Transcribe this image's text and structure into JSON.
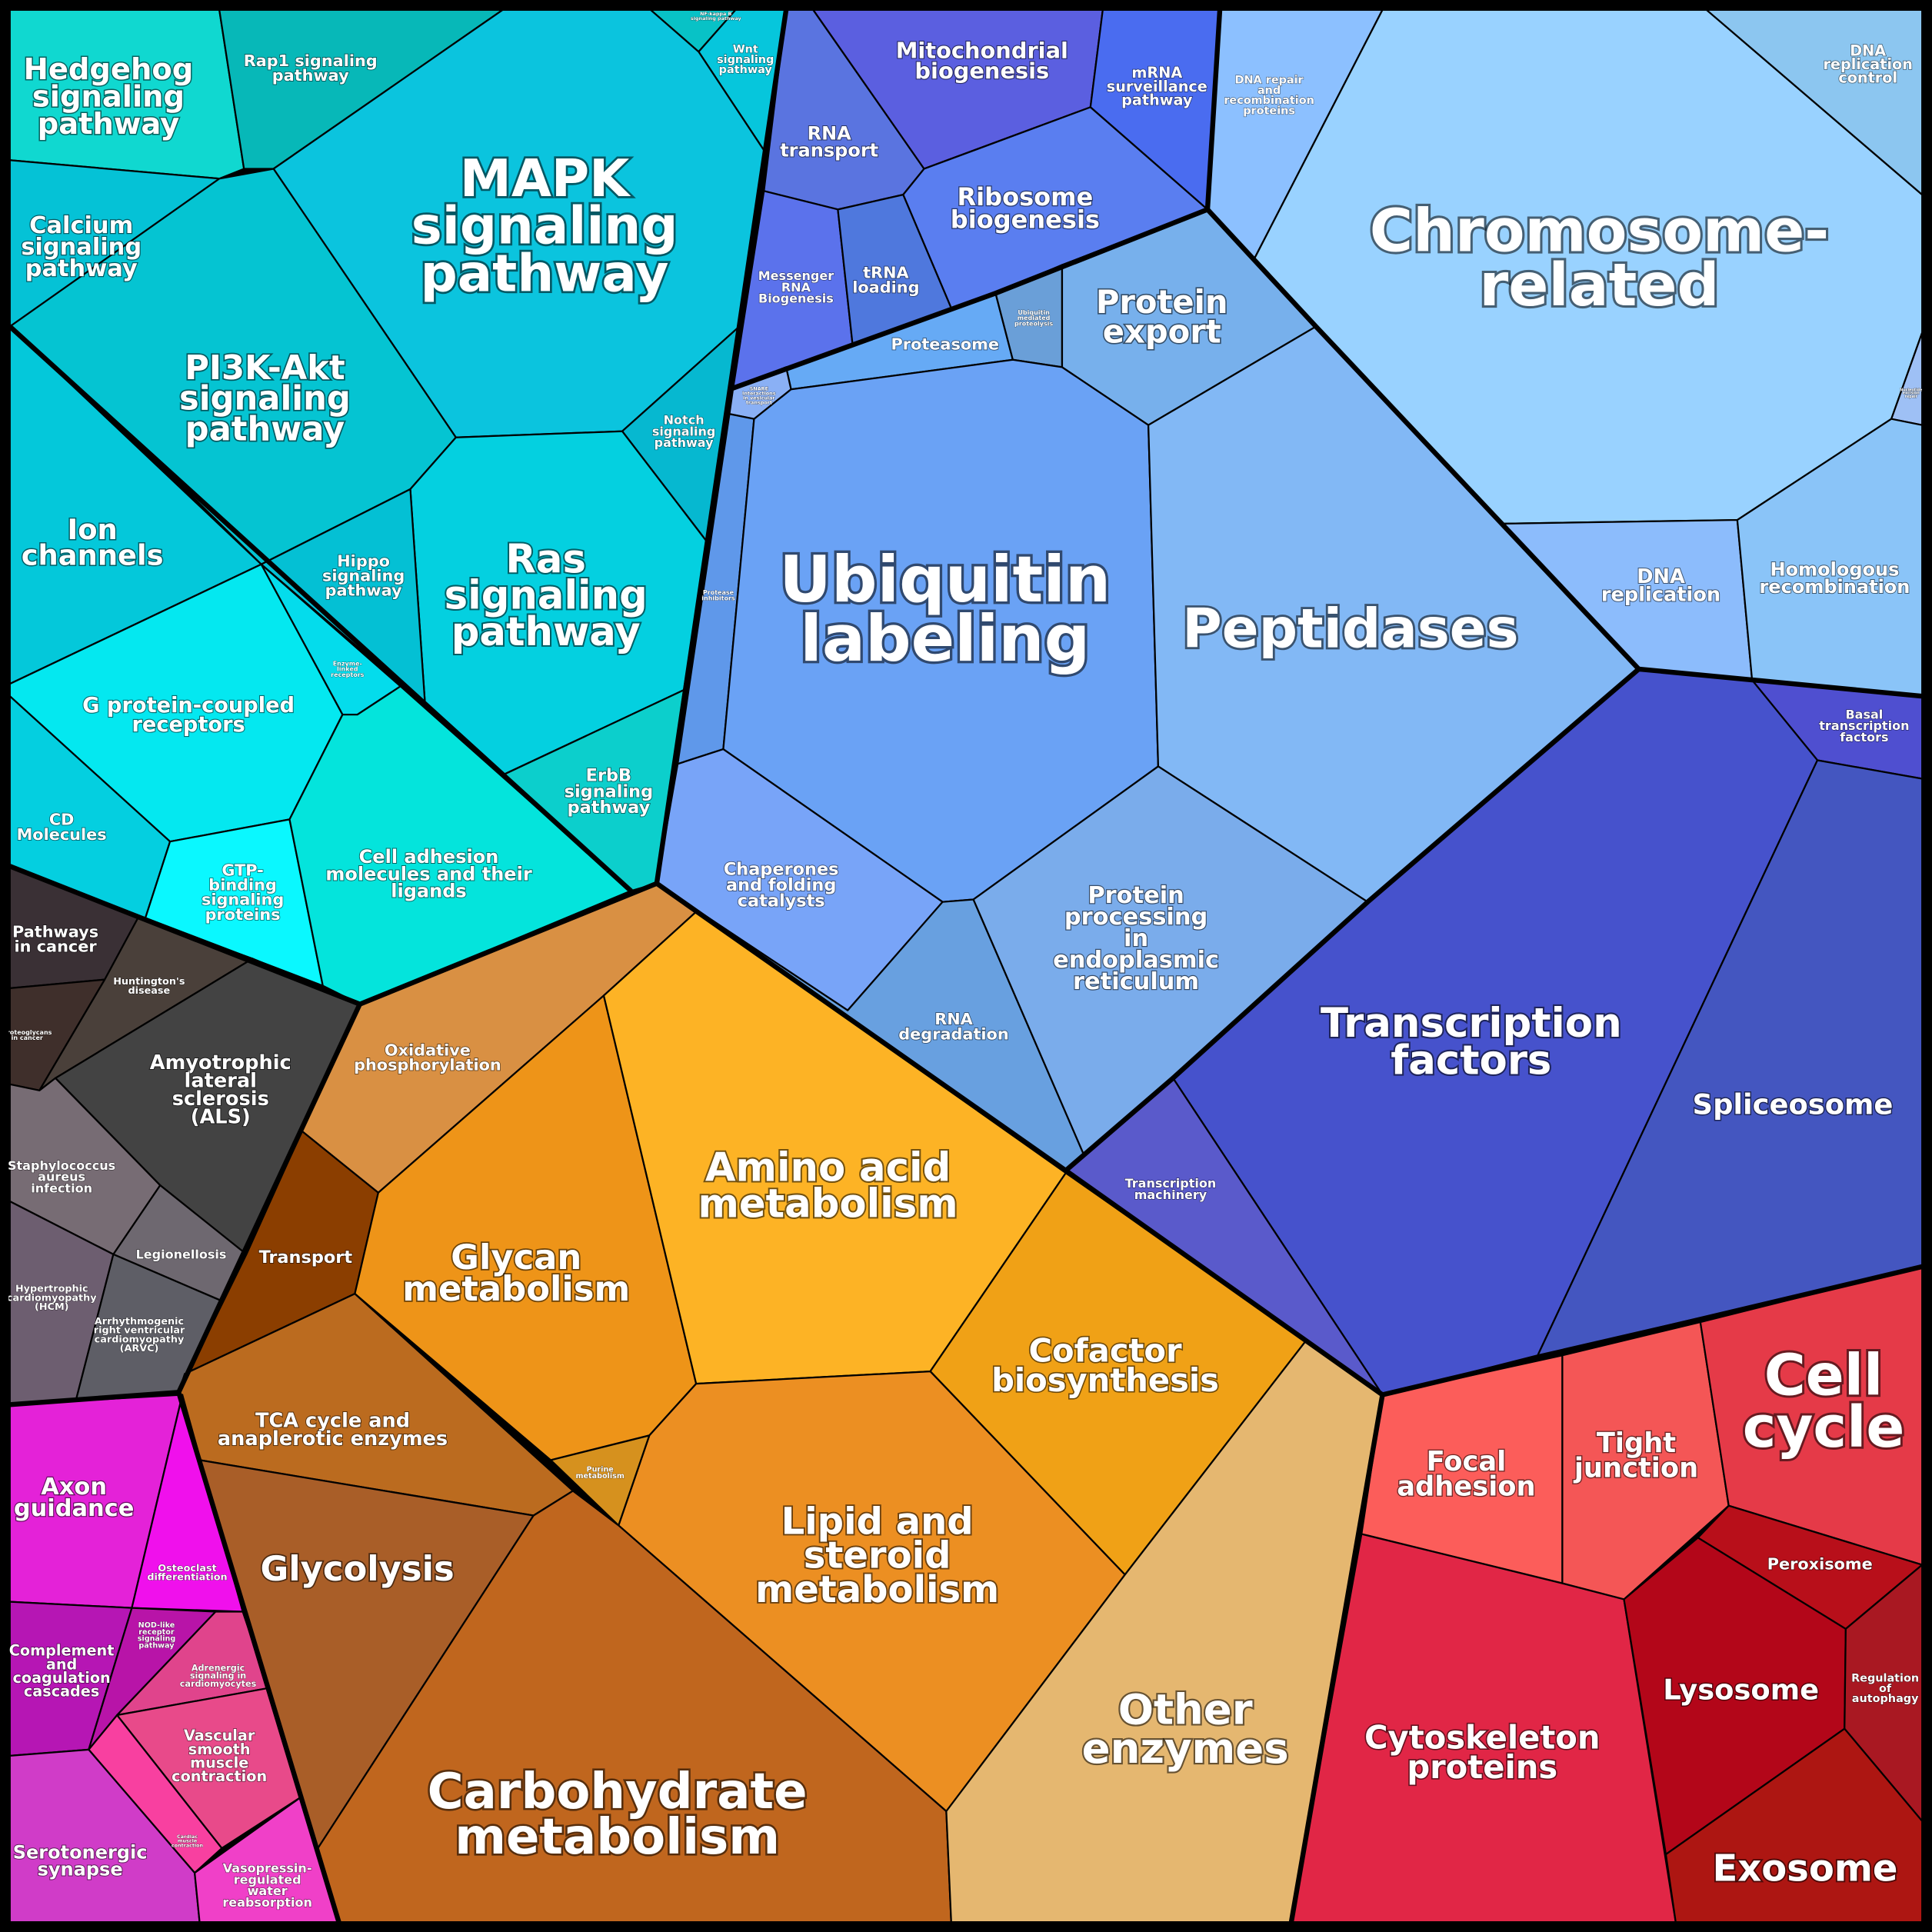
{
  "cells": [
    {
      "id": "hedgehog",
      "lines": [
        "Hedgehog",
        "signaling",
        "pathway"
      ],
      "color": "#10d8d0"
    },
    {
      "id": "rap1",
      "lines": [
        "Rap1 signaling",
        "pathway"
      ],
      "color": "#07b8b8"
    },
    {
      "id": "nfkb",
      "lines": [
        "NF-kappa B",
        "signaling pathway"
      ],
      "color": "#08c2c6"
    },
    {
      "id": "wnt",
      "lines": [
        "Wnt",
        "signaling",
        "pathway"
      ],
      "color": "#06c6dc"
    },
    {
      "id": "mapk",
      "lines": [
        "MAPK",
        "signaling",
        "pathway"
      ],
      "color": "#0bc4de"
    },
    {
      "id": "calcium",
      "lines": [
        "Calcium",
        "signaling",
        "pathway"
      ],
      "color": "#05c2d6"
    },
    {
      "id": "pi3k",
      "lines": [
        "PI3K-Akt",
        "signaling",
        "pathway"
      ],
      "color": "#05c4d2"
    },
    {
      "id": "notch",
      "lines": [
        "Notch",
        "signaling",
        "pathway"
      ],
      "color": "#06b8d0"
    },
    {
      "id": "ras",
      "lines": [
        "Ras",
        "signaling",
        "pathway"
      ],
      "color": "#04d0e0"
    },
    {
      "id": "hippo",
      "lines": [
        "Hippo",
        "signaling",
        "pathway"
      ],
      "color": "#04c0d4"
    },
    {
      "id": "erbb",
      "lines": [
        "ErbB",
        "signaling",
        "pathway"
      ],
      "color": "#0ccfcc"
    },
    {
      "id": "ion",
      "lines": [
        "Ion",
        "channels"
      ],
      "color": "#04c8da"
    },
    {
      "id": "enzyme",
      "lines": [
        "Enzyme-",
        "linked",
        "receptors"
      ],
      "color": "#04dcec"
    },
    {
      "id": "gpcr",
      "lines": [
        "G protein-coupled",
        "receptors"
      ],
      "color": "#04e8f0"
    },
    {
      "id": "cd",
      "lines": [
        "CD",
        "Molecules"
      ],
      "color": "#04cfe0"
    },
    {
      "id": "gtp",
      "lines": [
        "GTP-",
        "binding",
        "signaling",
        "proteins"
      ],
      "color": "#0af8ff"
    },
    {
      "id": "celladh",
      "lines": [
        "Cell adhesion",
        "molecules and their",
        "ligands"
      ],
      "color": "#04e4dc"
    },
    {
      "id": "cancer",
      "lines": [
        "Pathways",
        "in cancer"
      ],
      "color": "#3a3035"
    },
    {
      "id": "proteoglycans",
      "lines": [
        "Proteoglycans",
        "in cancer"
      ],
      "color": "#3f2f2b"
    },
    {
      "id": "huntington",
      "lines": [
        "Huntington's",
        "disease"
      ],
      "color": "#4a403a"
    },
    {
      "id": "als",
      "lines": [
        "Amyotrophic",
        "lateral",
        "sclerosis",
        "(ALS)"
      ],
      "color": "#434343"
    },
    {
      "id": "staph",
      "lines": [
        "Staphylococcus",
        "aureus",
        "infection"
      ],
      "color": "#776c74"
    },
    {
      "id": "legion",
      "lines": [
        "Legionellosis"
      ],
      "color": "#6e6870"
    },
    {
      "id": "hcm",
      "lines": [
        "Hypertrophic",
        "cardiomyopathy",
        "(HCM)"
      ],
      "color": "#6d5e70"
    },
    {
      "id": "arvc",
      "lines": [
        "Arrhythmogenic",
        "right ventricular",
        "cardiomyopathy",
        "(ARVC)"
      ],
      "color": "#5e5e66"
    },
    {
      "id": "oxphos",
      "lines": [
        "Oxidative",
        "phosphorylation"
      ],
      "color": "#d99043"
    },
    {
      "id": "transport",
      "lines": [
        "Transport"
      ],
      "color": "#8b3e00"
    },
    {
      "id": "glycan",
      "lines": [
        "Glycan",
        "metabolism"
      ],
      "color": "#ee9418"
    },
    {
      "id": "amino",
      "lines": [
        "Amino acid",
        "metabolism"
      ],
      "color": "#fdb325"
    },
    {
      "id": "cofactor",
      "lines": [
        "Cofactor",
        "biosynthesis"
      ],
      "color": "#f0a116"
    },
    {
      "id": "lipid",
      "lines": [
        "Lipid and",
        "steroid",
        "metabolism"
      ],
      "color": "#ec8f22"
    },
    {
      "id": "purine",
      "lines": [
        "Purine",
        "metabolism"
      ],
      "color": "#d6911e"
    },
    {
      "id": "tca",
      "lines": [
        "TCA cycle and",
        "anaplerotic enzymes"
      ],
      "color": "#bb6b1f"
    },
    {
      "id": "glycolysis",
      "lines": [
        "Glycolysis"
      ],
      "color": "#a95e28"
    },
    {
      "id": "carbo",
      "lines": [
        "Carbohydrate",
        "metabolism"
      ],
      "color": "#c0661e"
    },
    {
      "id": "other",
      "lines": [
        "Other",
        "enzymes"
      ],
      "color": "#e5b770"
    },
    {
      "id": "rnatransport",
      "lines": [
        "RNA",
        "transport"
      ],
      "color": "#5a74e0"
    },
    {
      "id": "mito",
      "lines": [
        "Mitochondrial",
        "biogenesis"
      ],
      "color": "#5b5fe0"
    },
    {
      "id": "mrnasurv",
      "lines": [
        "mRNA",
        "surveillance",
        "pathway"
      ],
      "color": "#4a6cf0"
    },
    {
      "id": "ribosome",
      "lines": [
        "Ribosome",
        "biogenesis"
      ],
      "color": "#5a7ef0"
    },
    {
      "id": "mrnabiog",
      "lines": [
        "Messenger",
        "RNA",
        "Biogenesis"
      ],
      "color": "#5b72ec"
    },
    {
      "id": "trna",
      "lines": [
        "tRNA",
        "loading"
      ],
      "color": "#4f78dd"
    },
    {
      "id": "proteasome",
      "lines": [
        "Proteasome"
      ],
      "color": "#66aaf5"
    },
    {
      "id": "ubmed",
      "lines": [
        "Ubiquitin",
        "mediated",
        "proteolysis"
      ],
      "color": "#6a9fd8"
    },
    {
      "id": "protexport",
      "lines": [
        "Protein",
        "export"
      ],
      "color": "#77b0ec"
    },
    {
      "id": "snare",
      "lines": [
        "SNARE",
        "interactions",
        "in vesicular",
        "transport"
      ],
      "color": "#8ab0f5"
    },
    {
      "id": "proteaseinh",
      "lines": [
        "Protease",
        "inhibitors"
      ],
      "color": "#5f98ea"
    },
    {
      "id": "ubiquitin",
      "lines": [
        "Ubiquitin",
        "labeling"
      ],
      "color": "#6aa2f5"
    },
    {
      "id": "peptidases",
      "lines": [
        "Peptidases"
      ],
      "color": "#82b8f5"
    },
    {
      "id": "chaperones",
      "lines": [
        "Chaperones",
        "and folding",
        "catalysts"
      ],
      "color": "#78a4f8"
    },
    {
      "id": "rnadeg",
      "lines": [
        "RNA",
        "degradation"
      ],
      "color": "#68a0e0"
    },
    {
      "id": "er",
      "lines": [
        "Protein",
        "processing",
        "in",
        "endoplasmic",
        "reticulum"
      ],
      "color": "#7aaceb"
    },
    {
      "id": "dnarepair",
      "lines": [
        "DNA repair",
        "and",
        "recombination",
        "proteins"
      ],
      "color": "#8cc0ff"
    },
    {
      "id": "chromosome",
      "lines": [
        "Chromosome-",
        "related"
      ],
      "color": "#99d2ff"
    },
    {
      "id": "dnarepctrl",
      "lines": [
        "DNA",
        "replication",
        "control"
      ],
      "color": "#8cc6f0"
    },
    {
      "id": "ner",
      "lines": [
        "Nucleotide",
        "excision",
        "repair"
      ],
      "color": "#9ec0f5"
    },
    {
      "id": "dnarep",
      "lines": [
        "DNA",
        "replication"
      ],
      "color": "#8cbcfc"
    },
    {
      "id": "homrec",
      "lines": [
        "Homologous",
        "recombination"
      ],
      "color": "#8ac4f8"
    },
    {
      "id": "basaltf",
      "lines": [
        "Basal",
        "transcription",
        "factors"
      ],
      "color": "#4f4fd0"
    },
    {
      "id": "tf",
      "lines": [
        "Transcription",
        "factors"
      ],
      "color": "#4652cc"
    },
    {
      "id": "spliceosome",
      "lines": [
        "Spliceosome"
      ],
      "color": "#4456c0"
    },
    {
      "id": "transmach",
      "lines": [
        "Transcription",
        "machinery"
      ],
      "color": "#5a5acb"
    },
    {
      "id": "focal",
      "lines": [
        "Focal",
        "adhesion"
      ],
      "color": "#fc5d5a"
    },
    {
      "id": "tight",
      "lines": [
        "Tight",
        "junction"
      ],
      "color": "#f45656"
    },
    {
      "id": "cellcycle",
      "lines": [
        "Cell",
        "cycle"
      ],
      "color": "#e53a48"
    },
    {
      "id": "cytoskeleton",
      "lines": [
        "Cytoskeleton",
        "proteins"
      ],
      "color": "#e12646"
    },
    {
      "id": "peroxisome",
      "lines": [
        "Peroxisome"
      ],
      "color": "#b80f1a"
    },
    {
      "id": "lysosome",
      "lines": [
        "Lysosome"
      ],
      "color": "#b30619"
    },
    {
      "id": "autophagy",
      "lines": [
        "Regulation",
        "of",
        "autophagy"
      ],
      "color": "#a91822"
    },
    {
      "id": "exosome",
      "lines": [
        "Exosome"
      ],
      "color": "#ad1612"
    },
    {
      "id": "axon",
      "lines": [
        "Axon",
        "guidance"
      ],
      "color": "#e422d8"
    },
    {
      "id": "osteoclast",
      "lines": [
        "Osteoclast",
        "differentiation"
      ],
      "color": "#f010ec"
    },
    {
      "id": "complement",
      "lines": [
        "Complement",
        "and",
        "coagulation",
        "cascades"
      ],
      "color": "#b616b4"
    },
    {
      "id": "nod",
      "lines": [
        "NOD-like",
        "receptor",
        "signaling",
        "pathway"
      ],
      "color": "#b814a8"
    },
    {
      "id": "adrenergic",
      "lines": [
        "Adrenergic",
        "signaling in",
        "cardiomyocytes"
      ],
      "color": "#e0448c"
    },
    {
      "id": "vascular",
      "lines": [
        "Vascular",
        "smooth",
        "muscle",
        "contraction"
      ],
      "color": "#e84a8a"
    },
    {
      "id": "cardiac",
      "lines": [
        "Cardiac",
        "muscle",
        "contraction"
      ],
      "color": "#f840a0"
    },
    {
      "id": "serotonergic",
      "lines": [
        "Serotonergic",
        "synapse"
      ],
      "color": "#d03cc8"
    },
    {
      "id": "vasopressin",
      "lines": [
        "Vasopressin-",
        "regulated",
        "water",
        "reabsorption"
      ],
      "color": "#f040c8"
    }
  ]
}
